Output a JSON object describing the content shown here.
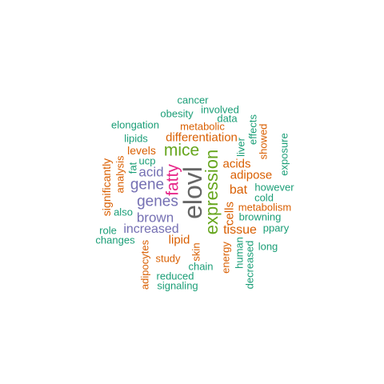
{
  "colors": {
    "teal": "#1b9e77",
    "orange": "#d95f02",
    "purple": "#7570b3",
    "magenta": "#e7298a",
    "green": "#66a61e",
    "gray": "#666666"
  },
  "words": {
    "cancer": "cancer",
    "involved": "involved",
    "obesity": "obesity",
    "data": "data",
    "elongation": "elongation",
    "metabolic": "metabolic",
    "effects": "effects",
    "lipids": "lipids",
    "differentiation": "differentiation",
    "liver": "liver",
    "showed": "showed",
    "mice": "mice",
    "levels": "levels",
    "exposure": "exposure",
    "ucp": "ucp",
    "significantly": "significantly",
    "analysis": "analysis",
    "fat": "fat",
    "acid": "acid",
    "acids": "acids",
    "adipose": "adipose",
    "fatty": "fatty",
    "gene": "gene",
    "elovl": "elovl",
    "expression": "expression",
    "bat": "bat",
    "however": "however",
    "genes": "genes",
    "cold": "cold",
    "cells": "cells",
    "metabolism": "metabolism",
    "also": "also",
    "brown": "brown",
    "browning": "browning",
    "role": "role",
    "increased": "increased",
    "tissue": "tissue",
    "ppary": "ppary",
    "changes": "changes",
    "lipid": "lipid",
    "long": "long",
    "adipocytes": "adipocytes",
    "skin": "skin",
    "energy": "energy",
    "human": "human",
    "decreased": "decreased",
    "study": "study",
    "chain": "chain",
    "reduced": "reduced",
    "signaling": "signaling"
  }
}
